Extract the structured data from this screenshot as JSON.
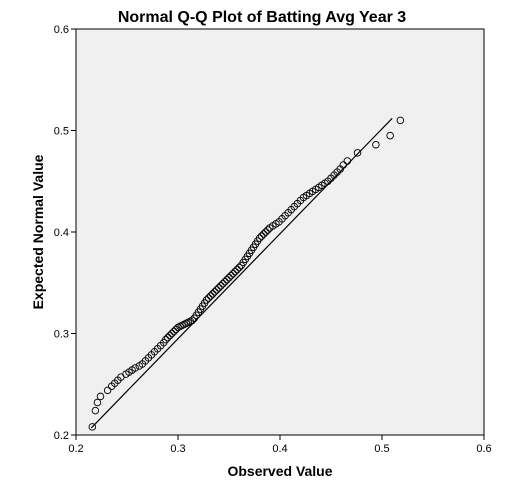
{
  "chart_data": {
    "type": "scatter",
    "title": "Normal Q-Q Plot of Batting Avg Year 3",
    "xlabel": "Observed Value",
    "ylabel": "Expected Normal Value",
    "xlim": [
      0.2,
      0.6
    ],
    "ylim": [
      0.2,
      0.6
    ],
    "x_ticks": [
      0.2,
      0.3,
      0.4,
      0.5,
      0.6
    ],
    "x_tick_labels": [
      "0.2",
      "0.3",
      "0.4",
      "0.5",
      "0.6"
    ],
    "y_ticks": [
      0.2,
      0.3,
      0.4,
      0.5,
      0.6
    ],
    "y_tick_labels": [
      "0.2",
      "0.3",
      "0.4",
      "0.5",
      "0.6"
    ],
    "grid": false,
    "reference_line": {
      "x": [
        0.215,
        0.51
      ],
      "y": [
        0.207,
        0.512
      ]
    },
    "series": [
      {
        "marker": "open-circle",
        "x": [
          0.216,
          0.219,
          0.221,
          0.224,
          0.231,
          0.235,
          0.238,
          0.241,
          0.244,
          0.249,
          0.252,
          0.255,
          0.258,
          0.262,
          0.265,
          0.268,
          0.271,
          0.274,
          0.277,
          0.28,
          0.283,
          0.286,
          0.288,
          0.29,
          0.292,
          0.294,
          0.296,
          0.298,
          0.3,
          0.302,
          0.304,
          0.306,
          0.308,
          0.31,
          0.312,
          0.314,
          0.316,
          0.318,
          0.32,
          0.322,
          0.324,
          0.326,
          0.328,
          0.33,
          0.332,
          0.334,
          0.336,
          0.338,
          0.34,
          0.342,
          0.344,
          0.346,
          0.348,
          0.35,
          0.352,
          0.354,
          0.356,
          0.358,
          0.36,
          0.362,
          0.364,
          0.366,
          0.368,
          0.37,
          0.372,
          0.374,
          0.376,
          0.378,
          0.38,
          0.382,
          0.384,
          0.386,
          0.388,
          0.39,
          0.393,
          0.396,
          0.399,
          0.402,
          0.405,
          0.408,
          0.411,
          0.414,
          0.417,
          0.42,
          0.423,
          0.426,
          0.429,
          0.432,
          0.435,
          0.438,
          0.441,
          0.444,
          0.447,
          0.45,
          0.453,
          0.456,
          0.459,
          0.462,
          0.466,
          0.476,
          0.494,
          0.508,
          0.518
        ],
        "y": [
          0.208,
          0.224,
          0.232,
          0.238,
          0.244,
          0.248,
          0.251,
          0.254,
          0.257,
          0.26,
          0.262,
          0.264,
          0.266,
          0.268,
          0.27,
          0.273,
          0.276,
          0.279,
          0.282,
          0.285,
          0.288,
          0.291,
          0.294,
          0.296,
          0.298,
          0.3,
          0.302,
          0.304,
          0.306,
          0.307,
          0.308,
          0.309,
          0.31,
          0.311,
          0.312,
          0.313,
          0.315,
          0.318,
          0.321,
          0.324,
          0.327,
          0.33,
          0.333,
          0.335,
          0.337,
          0.339,
          0.341,
          0.343,
          0.345,
          0.347,
          0.349,
          0.351,
          0.353,
          0.355,
          0.357,
          0.359,
          0.361,
          0.363,
          0.365,
          0.367,
          0.37,
          0.373,
          0.376,
          0.379,
          0.382,
          0.385,
          0.388,
          0.391,
          0.394,
          0.396,
          0.398,
          0.4,
          0.402,
          0.404,
          0.406,
          0.408,
          0.41,
          0.413,
          0.416,
          0.419,
          0.422,
          0.425,
          0.428,
          0.431,
          0.434,
          0.436,
          0.438,
          0.44,
          0.442,
          0.444,
          0.446,
          0.448,
          0.45,
          0.453,
          0.456,
          0.459,
          0.462,
          0.466,
          0.47,
          0.478,
          0.486,
          0.495,
          0.51
        ]
      }
    ]
  }
}
